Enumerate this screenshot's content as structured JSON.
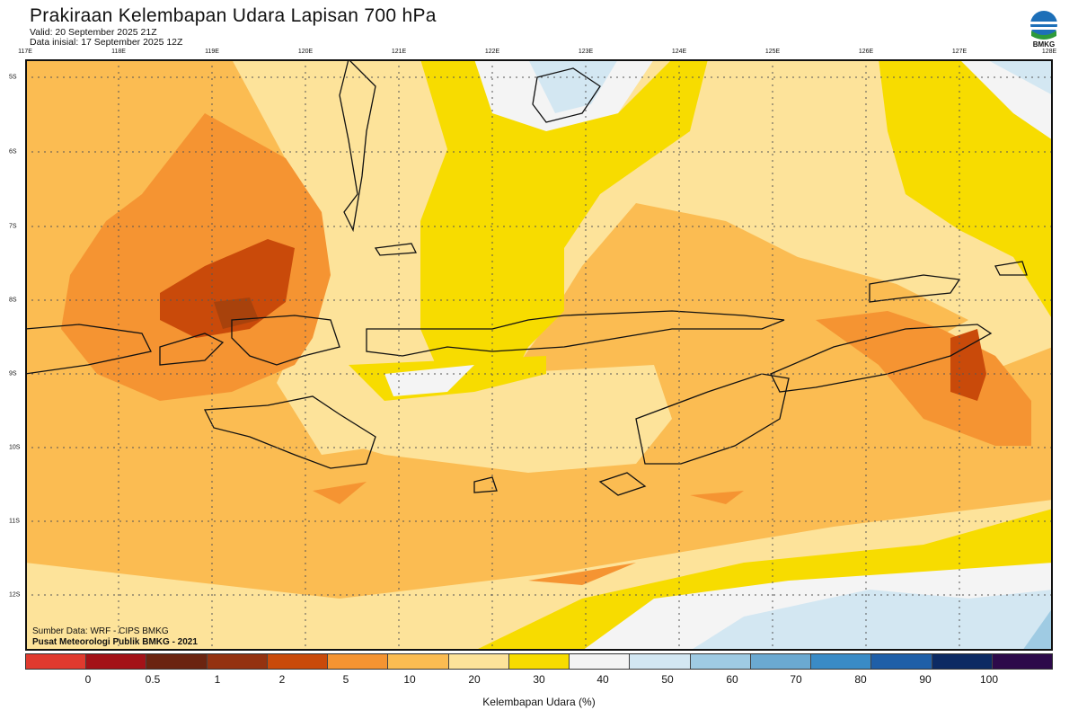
{
  "title": "Prakiraan Kelembapan Udara Lapisan 700 hPa",
  "valid": "Valid: 20 September 2025 21Z",
  "init": "Data inisial: 17 September 2025 12Z",
  "logo_text": "BMKG",
  "lon_labels": [
    "117E",
    "118E",
    "119E",
    "120E",
    "121E",
    "122E",
    "123E",
    "124E",
    "125E",
    "126E",
    "127E",
    "128E"
  ],
  "lat_labels": [
    "5S",
    "6S",
    "7S",
    "8S",
    "9S",
    "10S",
    "11S",
    "12S"
  ],
  "credit_source": "Sumber Data: WRF - CIPS BMKG",
  "credit_org": "Pusat Meteorologi Publik BMKG - 2021",
  "colorbar": {
    "colors": [
      "#e03a2e",
      "#a31218",
      "#6b2410",
      "#943210",
      "#c94a0a",
      "#f59432",
      "#fbbc52",
      "#fde39a",
      "#f7dc00",
      "#f4f4f4",
      "#d3e7f2",
      "#9fcbe3",
      "#6ba9d1",
      "#3a8bc6",
      "#1f5fa8",
      "#0c2a63",
      "#2d0a4a"
    ],
    "ticks": [
      "0",
      "0.5",
      "1",
      "2",
      "5",
      "10",
      "20",
      "30",
      "40",
      "50",
      "60",
      "70",
      "80",
      "90",
      "100"
    ],
    "label": "Kelembapan Udara (%)"
  },
  "map_colors": {
    "base": "#fbbc52",
    "light": "#fde39a",
    "yellow": "#f7dc00",
    "white": "#f4f4f4",
    "pale_blue": "#d3e7f2",
    "blue": "#9fcbe3",
    "orange": "#f59432",
    "dark_orange": "#c94a0a",
    "brown": "#a8420c"
  }
}
